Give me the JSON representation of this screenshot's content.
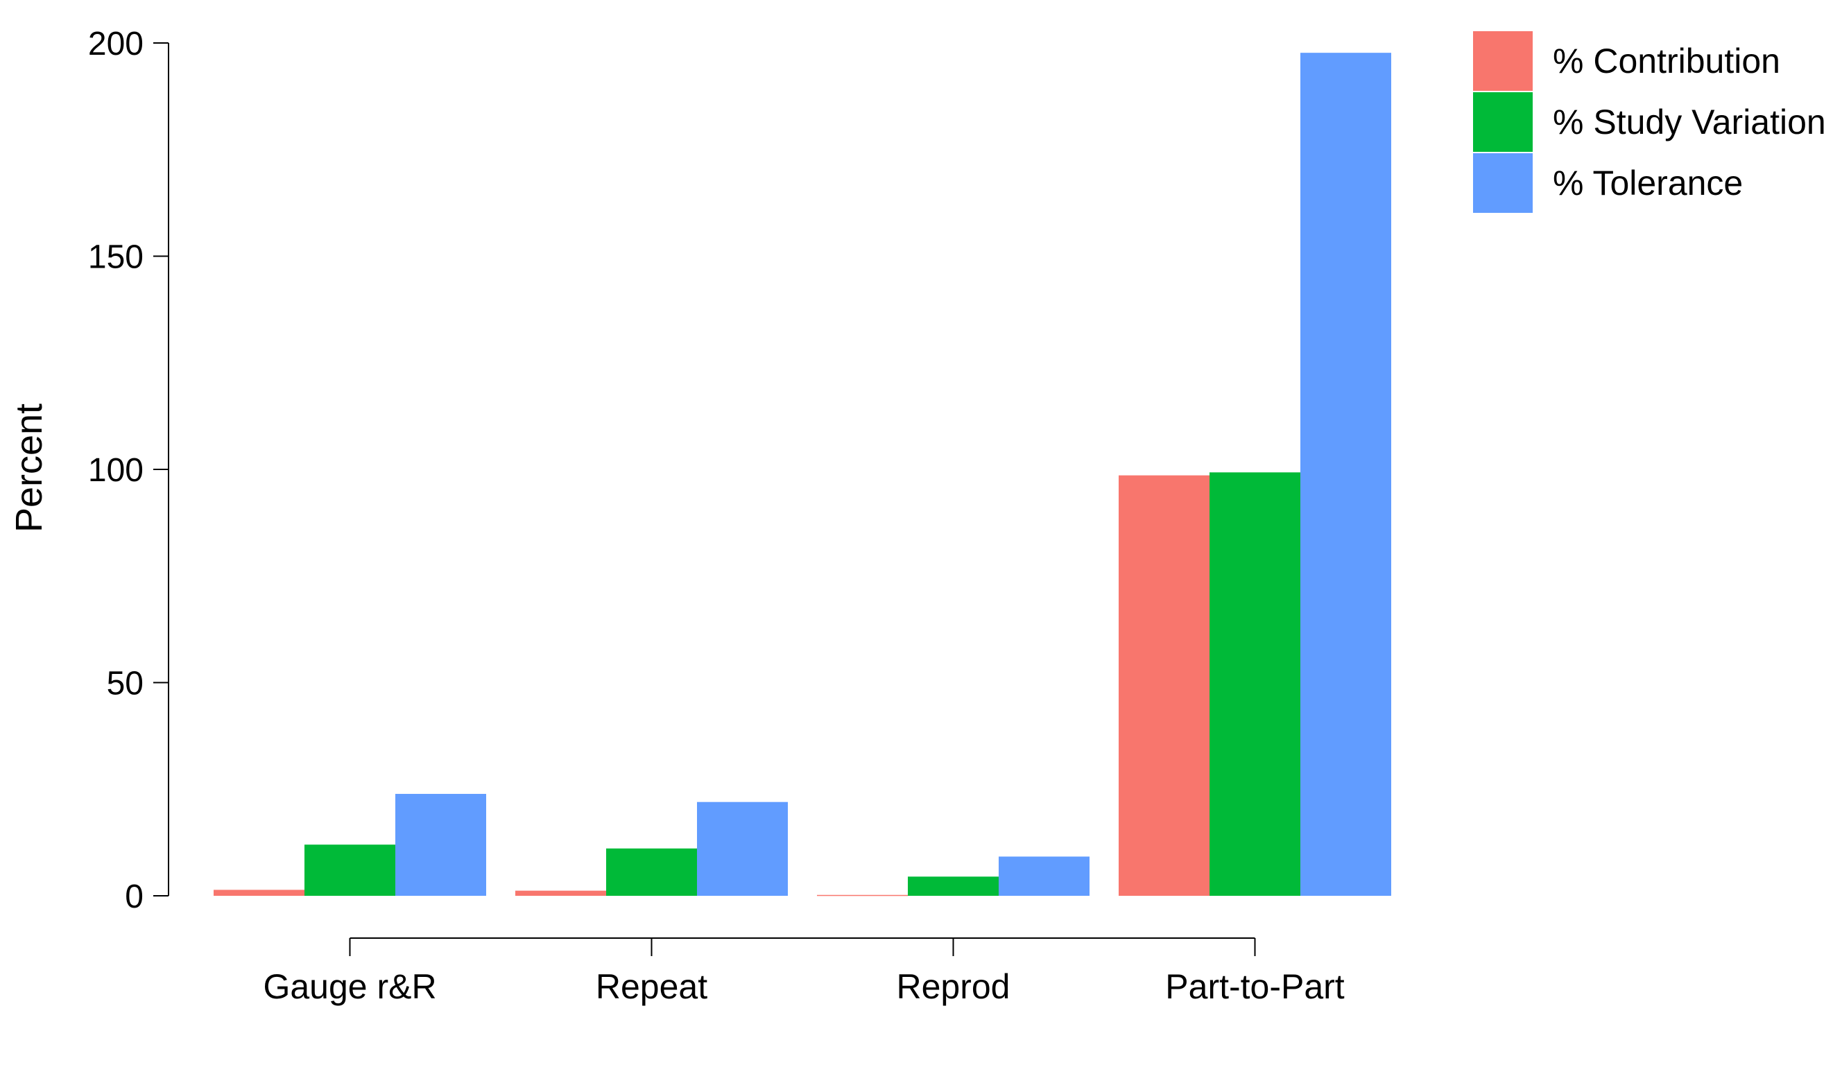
{
  "chart_data": {
    "type": "bar",
    "ylabel": "Percent",
    "xlabel": "",
    "ylim": [
      0,
      200
    ],
    "yticks": [
      0,
      50,
      100,
      150,
      200
    ],
    "categories": [
      "Gauge r&R",
      "Repeat",
      "Reprod",
      "Part-to-Part"
    ],
    "series": [
      {
        "name": "% Contribution",
        "color": "#F8766D",
        "values": [
          1.4,
          1.2,
          0.2,
          98.6
        ]
      },
      {
        "name": "% Study Variation",
        "color": "#00BA38",
        "values": [
          12.0,
          11.1,
          4.5,
          99.3
        ]
      },
      {
        "name": "% Tolerance",
        "color": "#619CFF",
        "values": [
          23.9,
          22.0,
          9.2,
          197.7
        ]
      }
    ],
    "legend": "top-right",
    "grid": false
  }
}
